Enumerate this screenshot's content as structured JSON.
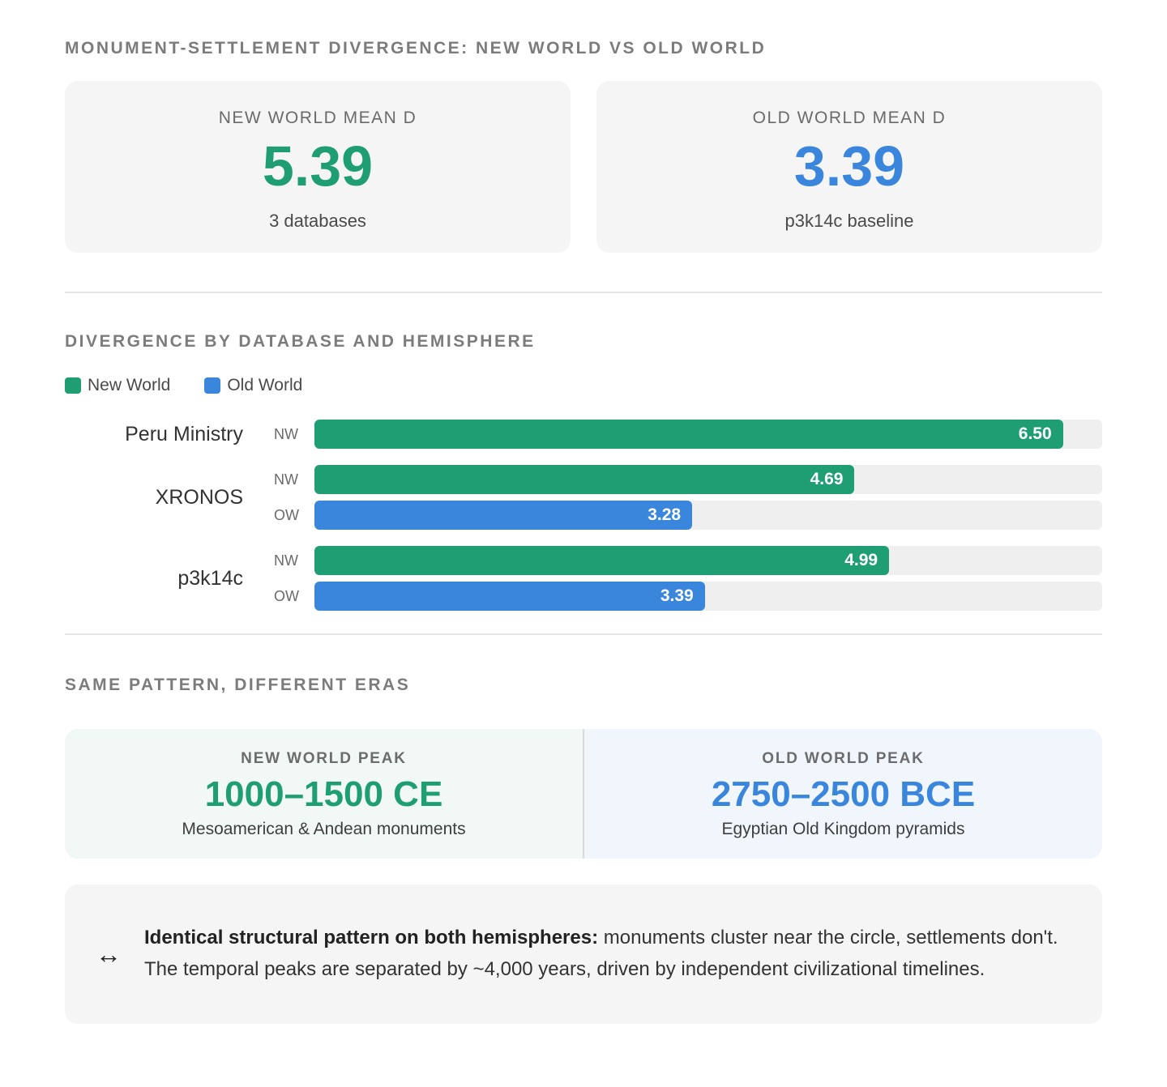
{
  "header": {
    "title": "MONUMENT-SETTLEMENT DIVERGENCE: NEW WORLD VS OLD WORLD"
  },
  "stats": [
    {
      "label": "NEW WORLD MEAN D",
      "value": "5.39",
      "sub": "3 databases",
      "color": "#1f9e74"
    },
    {
      "label": "OLD WORLD MEAN D",
      "value": "3.39",
      "sub": "p3k14c baseline",
      "color": "#3a86dc"
    }
  ],
  "chart_section": {
    "title": "DIVERGENCE BY DATABASE AND HEMISPHERE"
  },
  "chart_data": {
    "type": "bar",
    "orientation": "horizontal",
    "title": "DIVERGENCE BY DATABASE AND HEMISPHERE",
    "legend": [
      {
        "name": "New World",
        "color": "#1f9e74"
      },
      {
        "name": "Old World",
        "color": "#3a86dc"
      }
    ],
    "legend_position": "top-left",
    "xlim": [
      0,
      6.84
    ],
    "grid": false,
    "groups": [
      {
        "database": "Peru Ministry",
        "bars": [
          {
            "hemisphere": "NW",
            "value": 6.5
          }
        ]
      },
      {
        "database": "XRONOS",
        "bars": [
          {
            "hemisphere": "NW",
            "value": 4.69
          },
          {
            "hemisphere": "OW",
            "value": 3.28
          }
        ]
      },
      {
        "database": "p3k14c",
        "bars": [
          {
            "hemisphere": "NW",
            "value": 4.99
          },
          {
            "hemisphere": "OW",
            "value": 3.39
          }
        ]
      }
    ],
    "colors": {
      "NW": "#1f9e74",
      "OW": "#3a86dc"
    }
  },
  "eras_section": {
    "title": "SAME PATTERN, DIFFERENT ERAS",
    "new_world": {
      "label": "NEW WORLD PEAK",
      "range": "1000–1500 CE",
      "sub": "Mesoamerican & Andean monuments",
      "color": "#1f9e74"
    },
    "old_world": {
      "label": "OLD WORLD PEAK",
      "range": "2750–2500 BCE",
      "sub": "Egyptian Old Kingdom pyramids",
      "color": "#3a86dc"
    }
  },
  "note": {
    "icon": "↔",
    "bold": "Identical structural pattern on both hemispheres:",
    "text": " monuments cluster near the circle, settlements don't. The temporal peaks are separated by ~4,000 years, driven by independent civilizational timelines."
  }
}
